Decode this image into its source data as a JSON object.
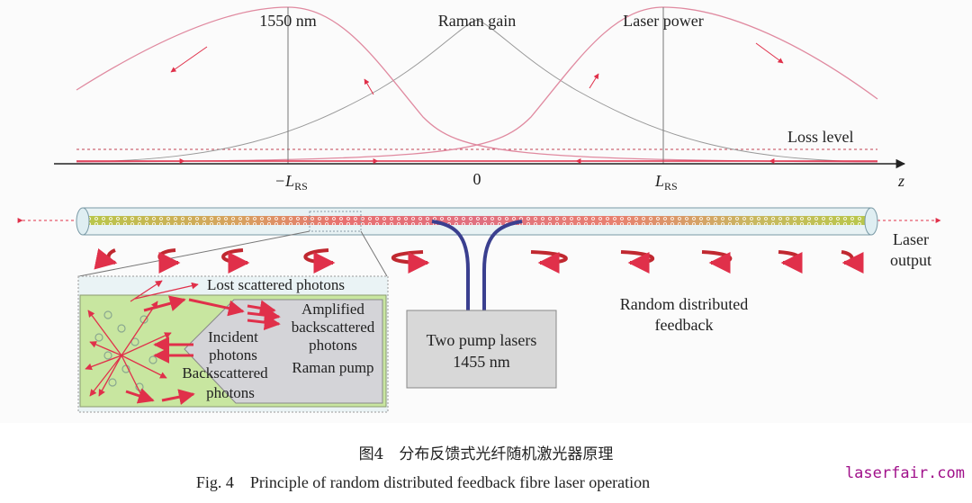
{
  "diagram": {
    "labels": {
      "wavelength": "1550 nm",
      "raman_gain": "Raman gain",
      "laser_power": "Laser power",
      "loss_level": "Loss level",
      "neg_lrs": "−L",
      "neg_lrs_sub": "RS",
      "zero": "0",
      "lrs": "L",
      "lrs_sub": "RS",
      "z_axis": "z",
      "laser_output_1": "Laser",
      "laser_output_2": "output",
      "feedback_1": "Random distributed",
      "feedback_2": "feedback",
      "pump_1": "Two pump lasers",
      "pump_2": "1455 nm"
    },
    "inset": {
      "lost": "Lost scattered photons",
      "amplified_1": "Amplified",
      "amplified_2": "backscattered",
      "amplified_3": "photons",
      "incident_1": "Incident",
      "incident_2": "photons",
      "backscattered_1": "Backscattered",
      "backscattered_2": "photons",
      "raman_pump": "Raman pump"
    },
    "colors": {
      "signal": "#e0304a",
      "curve": "#e08aa0",
      "gain": "#999999",
      "pump": "#3a3f8f",
      "core_green": "#b8c84a",
      "core_red": "#e87070",
      "inset_green": "#c8e6a0"
    }
  },
  "caption": {
    "cn": "图4　分布反馈式光纤随机激光器原理",
    "en": "Fig. 4　Principle of random distributed feedback fibre laser operation"
  },
  "watermark": "laserfair.com"
}
